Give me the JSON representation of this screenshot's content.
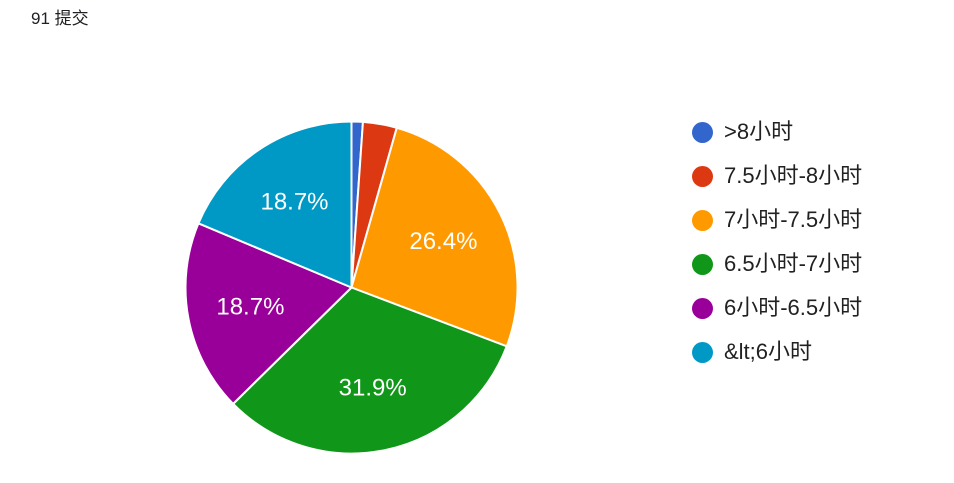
{
  "header": {
    "title": "91 提交"
  },
  "chart_data": {
    "type": "pie",
    "title": "91 提交",
    "legend_position": "right",
    "start_angle_deg": 0,
    "direction": "clockwise",
    "slice_border_color": "#ffffff",
    "percent_label_color": "#ffffff",
    "slices": [
      {
        "label": ">8小时",
        "value": 1.1,
        "percent_label": "",
        "color": "#3366CC"
      },
      {
        "label": "7.5小时-8小时",
        "value": 3.3,
        "percent_label": "",
        "color": "#DC3912"
      },
      {
        "label": "7小时-7.5小时",
        "value": 26.4,
        "percent_label": "26.4%",
        "color": "#FF9900"
      },
      {
        "label": "6.5小时-7小时",
        "value": 31.9,
        "percent_label": "31.9%",
        "color": "#109618"
      },
      {
        "label": "6小时-6.5小时",
        "value": 18.7,
        "percent_label": "18.7%",
        "color": "#990099"
      },
      {
        "label": "&lt;6小时",
        "value": 18.7,
        "percent_label": "18.7%",
        "color": "#0099C6"
      }
    ]
  }
}
